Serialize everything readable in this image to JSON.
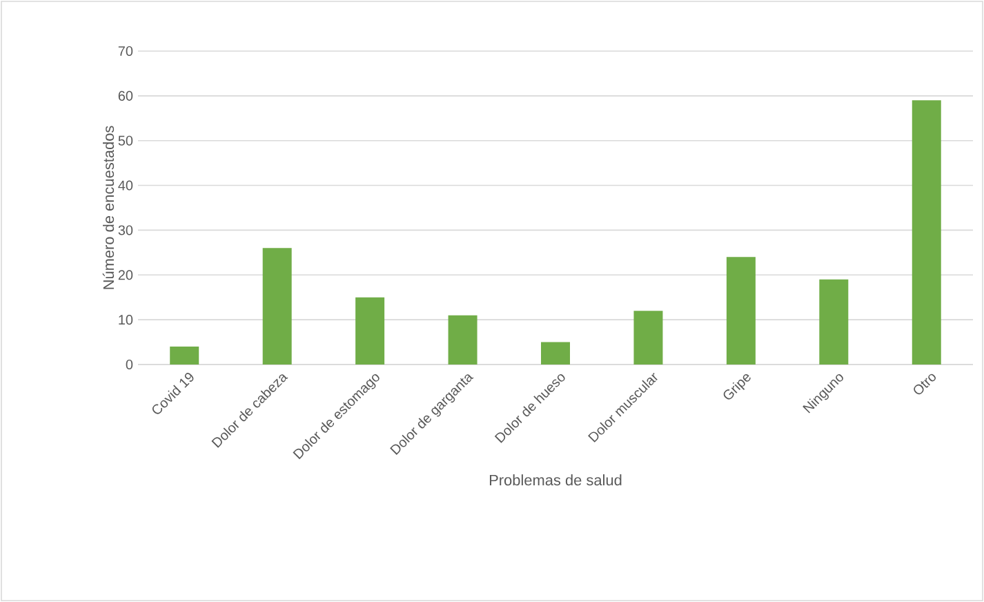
{
  "chart_data": {
    "type": "bar",
    "xlabel": "Problemas de salud",
    "ylabel": "Número de encuestados",
    "categories": [
      "Covid 19",
      "Dolor de cabeza",
      "Dolor de estomago",
      "Dolor de garganta",
      "Dolor de hueso",
      "Dolor muscular",
      "Gripe",
      "Ninguno",
      "Otro"
    ],
    "values": [
      4,
      26,
      15,
      11,
      5,
      12,
      24,
      19,
      59
    ],
    "color": "#70ad47",
    "ylim": [
      0,
      70
    ],
    "yticks": [
      0,
      10,
      20,
      30,
      40,
      50,
      60,
      70
    ],
    "grid": "y"
  }
}
